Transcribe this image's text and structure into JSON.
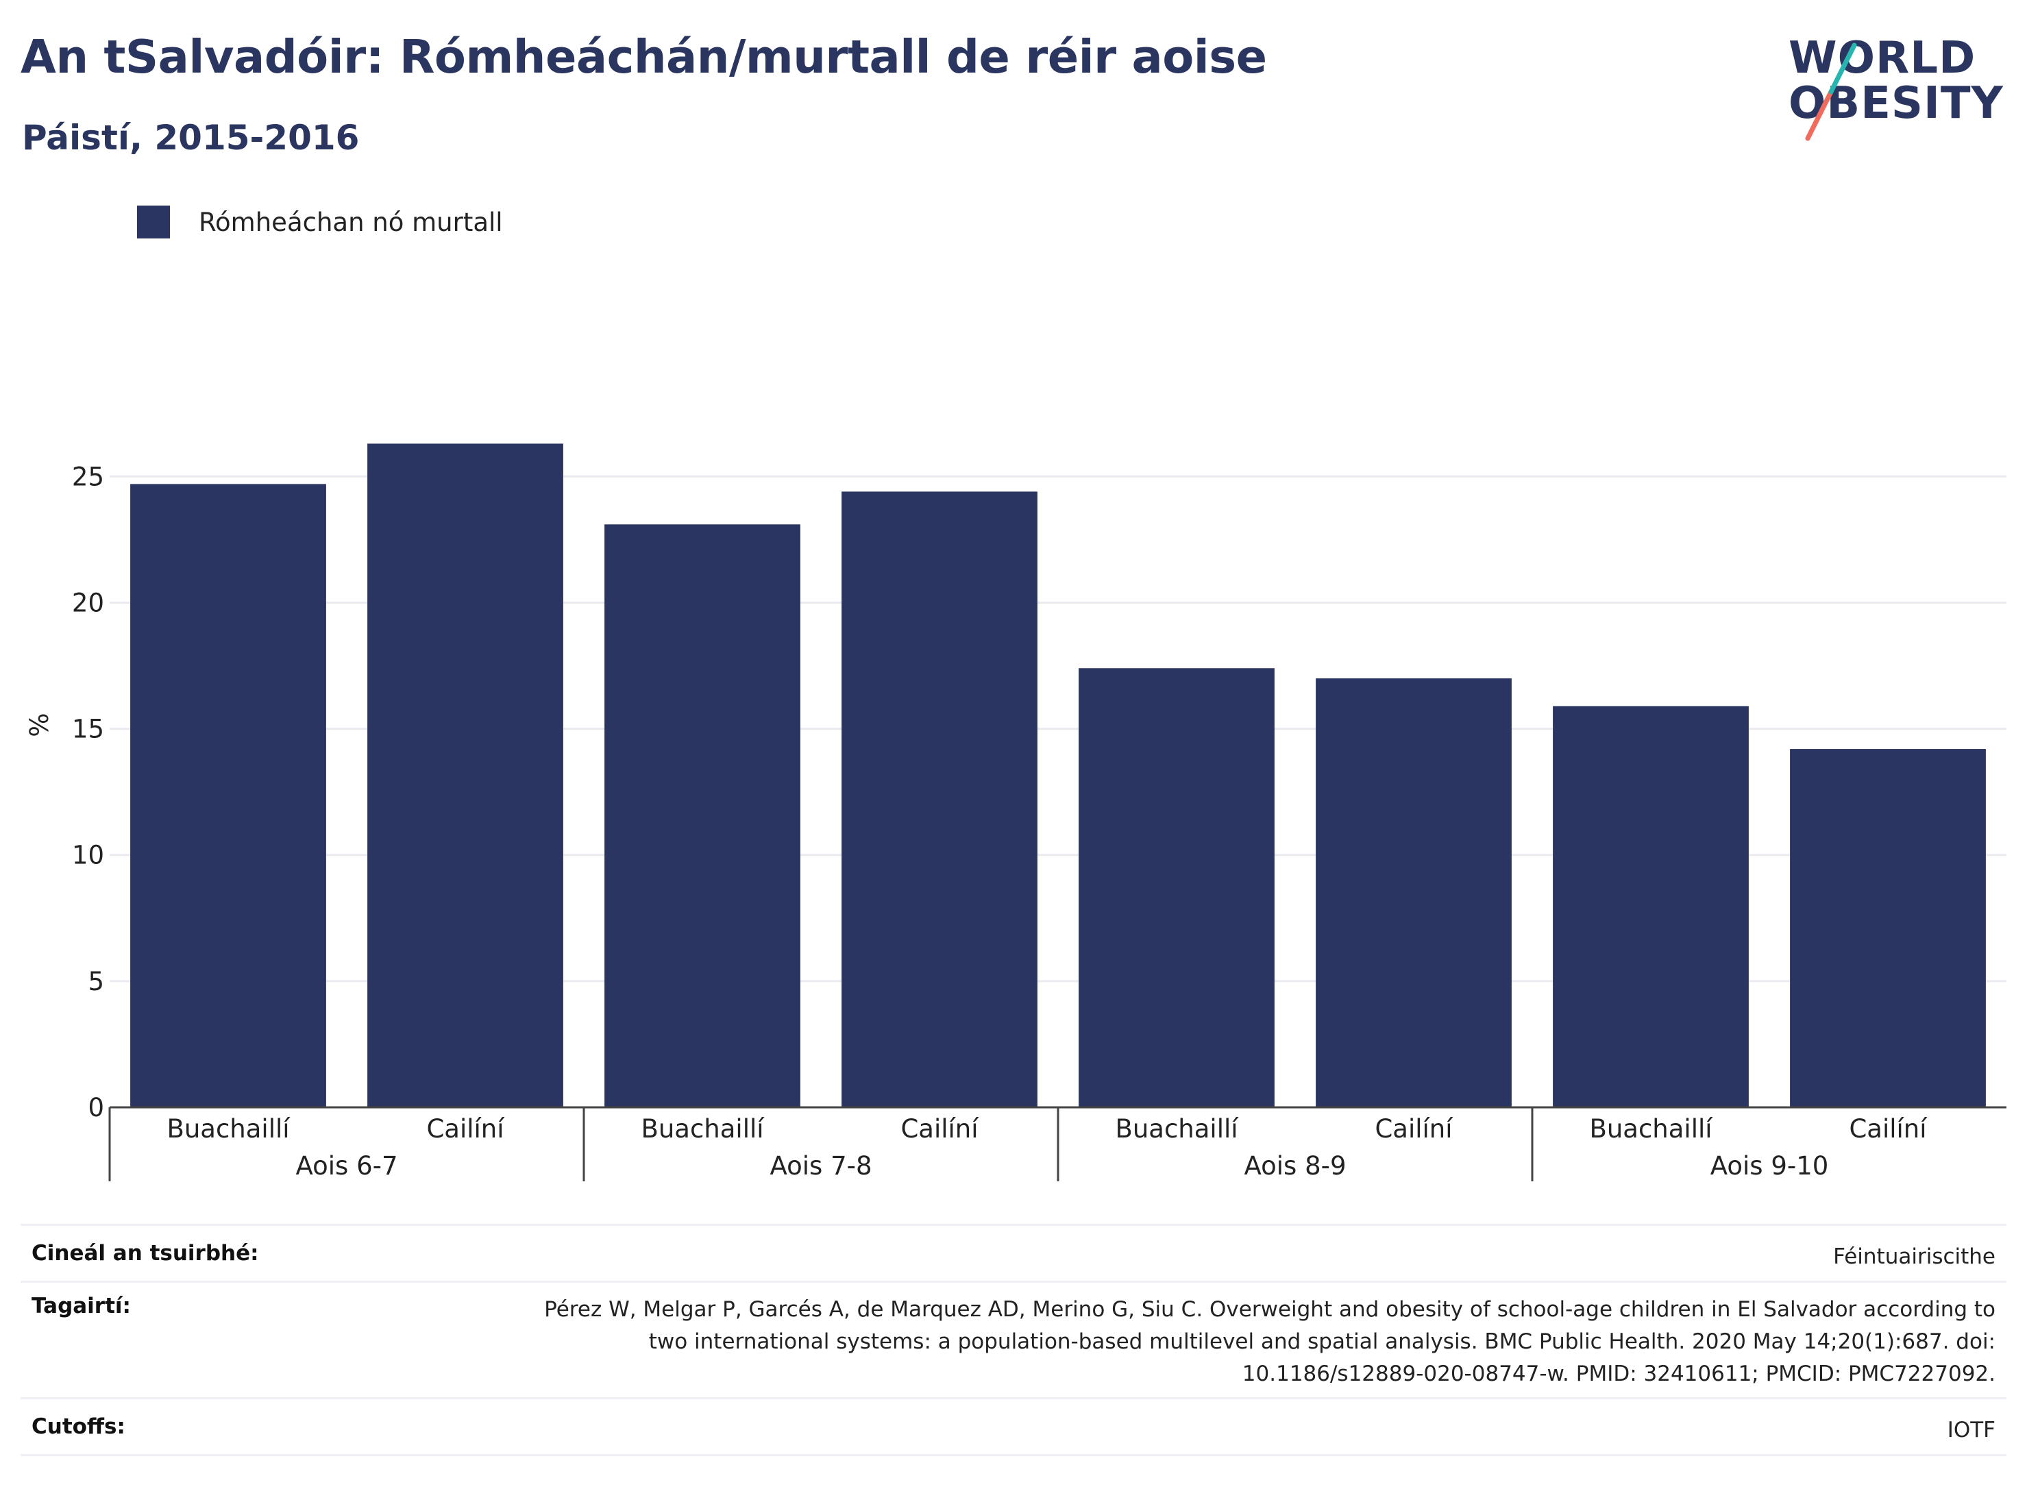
{
  "header": {
    "title": "An tSalvadóir: Rómheáchán/murtall de réir aoise",
    "subtitle": "Páistí, 2015-2016"
  },
  "logo": {
    "line1": "WORLD",
    "line2": "OBESITY",
    "colors": [
      "#2a3560",
      "#f06b5b",
      "#27b5b0"
    ]
  },
  "legend": {
    "label": "Rómheáchan nó murtall",
    "color": "#2a3561"
  },
  "chart_data": {
    "type": "bar",
    "title": "An tSalvadóir: Rómheáchán/murtall de réir aoise",
    "subtitle": "Páistí, 2015-2016",
    "ylabel": "%",
    "xlabel": "",
    "ylim": [
      0,
      29
    ],
    "yticks": [
      0,
      5,
      10,
      15,
      20,
      25
    ],
    "grid": true,
    "legend_position": "top-left",
    "bar_color": "#2a3561",
    "groups": [
      "Aois 6-7",
      "Aois 7-8",
      "Aois 8-9",
      "Aois 9-10"
    ],
    "subcategories": [
      "Buachaillí",
      "Cailíní"
    ],
    "series": [
      {
        "name": "Rómheáchan nó murtall",
        "values": [
          24.7,
          26.3,
          23.1,
          24.4,
          17.4,
          17.0,
          15.9,
          14.2
        ]
      }
    ]
  },
  "footer": {
    "rows": [
      {
        "key": "Cineál an tsuirbhé:",
        "value": "Féintuairiscithe"
      },
      {
        "key": "Tagairtí:",
        "value": "Pérez W, Melgar P, Garcés A, de Marquez AD, Merino G, Siu C. Overweight and obesity of school-age children in El Salvador according to two international systems: a population-based multilevel and spatial analysis. BMC Public Health. 2020 May 14;20(1):687. doi: 10.1186/s12889-020-08747-w. PMID: 32410611; PMCID: PMC7227092."
      },
      {
        "key": "Cutoffs:",
        "value": "IOTF"
      }
    ]
  }
}
